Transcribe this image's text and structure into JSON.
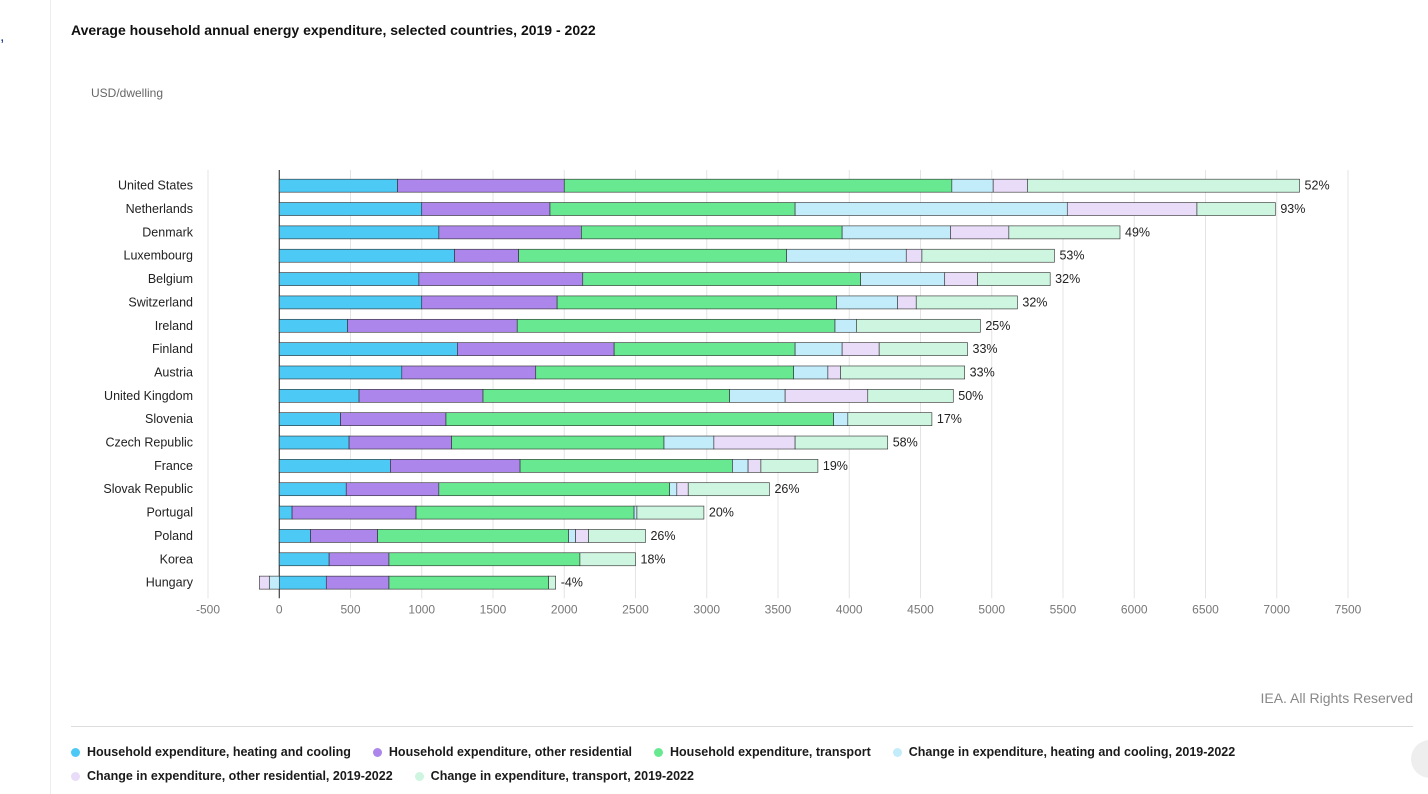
{
  "chart_data": {
    "type": "bar",
    "orientation": "horizontal",
    "stacked": true,
    "title": "Average household annual energy expenditure, selected countries, 2019 - 2022",
    "ylabel": "USD/dwelling",
    "xlim": [
      -500,
      7500
    ],
    "xticks": [
      -500,
      0,
      500,
      1000,
      1500,
      2000,
      2500,
      3000,
      3500,
      4000,
      4500,
      5000,
      5500,
      6000,
      6500,
      7000,
      7500
    ],
    "credit": "IEA. All Rights Reserved",
    "categories": [
      "United States",
      "Netherlands",
      "Denmark",
      "Luxembourg",
      "Belgium",
      "Switzerland",
      "Ireland",
      "Finland",
      "Austria",
      "United Kingdom",
      "Slovenia",
      "Czech Republic",
      "France",
      "Slovak Republic",
      "Portugal",
      "Poland",
      "Korea",
      "Hungary"
    ],
    "annotations": [
      "52%",
      "93%",
      "49%",
      "53%",
      "32%",
      "32%",
      "25%",
      "33%",
      "33%",
      "50%",
      "17%",
      "58%",
      "19%",
      "26%",
      "20%",
      "26%",
      "18%",
      "-4%"
    ],
    "series": [
      {
        "name": "Household expenditure, heating and cooling",
        "color": "#4cc9f5",
        "values": [
          830,
          1000,
          1120,
          1230,
          980,
          1000,
          480,
          1250,
          860,
          560,
          430,
          490,
          780,
          470,
          90,
          220,
          350,
          330
        ]
      },
      {
        "name": "Household expenditure, other residential",
        "color": "#ac86eb",
        "values": [
          1170,
          900,
          1000,
          450,
          1150,
          950,
          1190,
          1100,
          940,
          870,
          740,
          720,
          910,
          650,
          870,
          470,
          420,
          440
        ]
      },
      {
        "name": "Household expenditure, transport",
        "color": "#68e991",
        "values": [
          2720,
          1720,
          1830,
          1880,
          1950,
          1960,
          2230,
          1270,
          1810,
          1730,
          2720,
          1490,
          1490,
          1620,
          1530,
          1340,
          1340,
          1120
        ]
      },
      {
        "name": "Change in expenditure, heating and cooling, 2019-2022",
        "color": "#c3ecfb",
        "values": [
          290,
          1910,
          760,
          840,
          590,
          430,
          150,
          330,
          240,
          390,
          100,
          350,
          110,
          50,
          20,
          50,
          0,
          -70
        ]
      },
      {
        "name": "Change in expenditure, other residential, 2019-2022",
        "color": "#e8dcf8",
        "values": [
          240,
          910,
          410,
          110,
          230,
          130,
          0,
          260,
          90,
          580,
          0,
          570,
          90,
          80,
          0,
          90,
          0,
          -70
        ]
      },
      {
        "name": "Change in expenditure, transport, 2019-2022",
        "color": "#cdf5e0",
        "values": [
          1910,
          550,
          780,
          930,
          510,
          710,
          870,
          620,
          870,
          600,
          590,
          650,
          400,
          570,
          470,
          400,
          390,
          50
        ]
      }
    ]
  }
}
